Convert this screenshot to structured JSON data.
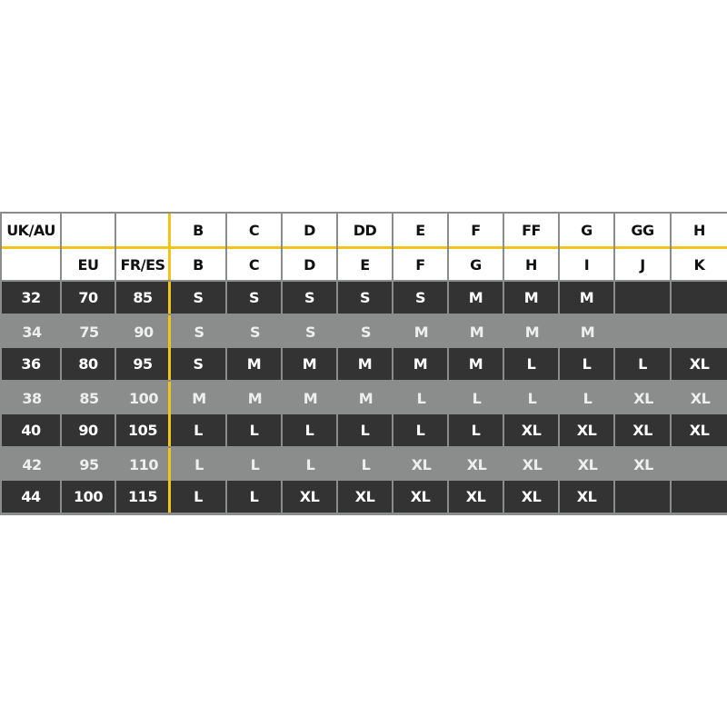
{
  "chart_data": {
    "type": "table",
    "header_rows": [
      [
        "UK/AU",
        "",
        "",
        "B",
        "C",
        "D",
        "DD",
        "E",
        "F",
        "FF",
        "G",
        "GG",
        "H"
      ],
      [
        "",
        "EU",
        "FR/ES",
        "B",
        "C",
        "D",
        "E",
        "F",
        "G",
        "H",
        "I",
        "J",
        "K"
      ]
    ],
    "rows": [
      [
        "32",
        "70",
        "85",
        "S",
        "S",
        "S",
        "S",
        "S",
        "M",
        "M",
        "M",
        "",
        ""
      ],
      [
        "34",
        "75",
        "90",
        "S",
        "S",
        "S",
        "S",
        "M",
        "M",
        "M",
        "M",
        "",
        ""
      ],
      [
        "36",
        "80",
        "95",
        "S",
        "M",
        "M",
        "M",
        "M",
        "M",
        "L",
        "L",
        "L",
        "XL"
      ],
      [
        "38",
        "85",
        "100",
        "M",
        "M",
        "M",
        "M",
        "L",
        "L",
        "L",
        "L",
        "XL",
        "XL"
      ],
      [
        "40",
        "90",
        "105",
        "L",
        "L",
        "L",
        "L",
        "L",
        "L",
        "XL",
        "XL",
        "XL",
        "XL"
      ],
      [
        "42",
        "95",
        "110",
        "L",
        "L",
        "L",
        "L",
        "XL",
        "XL",
        "XL",
        "XL",
        "XL",
        ""
      ],
      [
        "44",
        "100",
        "115",
        "L",
        "L",
        "XL",
        "XL",
        "XL",
        "XL",
        "XL",
        "XL",
        "",
        ""
      ]
    ],
    "colors": {
      "accent": "#f2c418",
      "dark_row": "#333333",
      "light_row": "#8b8d8d",
      "header": "#ffffff"
    }
  }
}
